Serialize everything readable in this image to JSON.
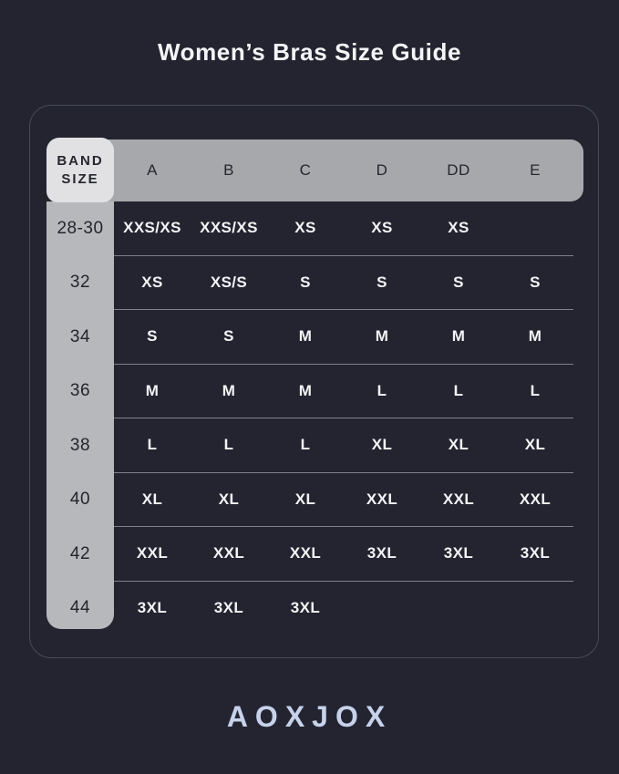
{
  "title": "Women’s Bras Size Guide",
  "brand": {
    "logo_text": "AOXJOX"
  },
  "colors": {
    "background": "#232430",
    "card_border": "#474b56",
    "header_row": "#a7a8ac",
    "band_column": "#b7b8bc",
    "corner_cell": "#e1e1e4",
    "cell_text": "#f4f4f6",
    "dark_text": "#26272d",
    "separator": "#7e818a",
    "logo": "#c7d2ea"
  },
  "table": {
    "corner_lines": [
      "BAND",
      "SIZE"
    ],
    "columns": [
      "A",
      "B",
      "C",
      "D",
      "DD",
      "E"
    ],
    "rows": [
      {
        "band": "28-30",
        "cells": [
          "XXS/XS",
          "XXS/XS",
          "XS",
          "XS",
          "XS",
          ""
        ]
      },
      {
        "band": "32",
        "cells": [
          "XS",
          "XS/S",
          "S",
          "S",
          "S",
          "S"
        ]
      },
      {
        "band": "34",
        "cells": [
          "S",
          "S",
          "M",
          "M",
          "M",
          "M"
        ]
      },
      {
        "band": "36",
        "cells": [
          "M",
          "M",
          "M",
          "L",
          "L",
          "L"
        ]
      },
      {
        "band": "38",
        "cells": [
          "L",
          "L",
          "L",
          "XL",
          "XL",
          "XL"
        ]
      },
      {
        "band": "40",
        "cells": [
          "XL",
          "XL",
          "XL",
          "XXL",
          "XXL",
          "XXL"
        ]
      },
      {
        "band": "42",
        "cells": [
          "XXL",
          "XXL",
          "XXL",
          "3XL",
          "3XL",
          "3XL"
        ]
      },
      {
        "band": "44",
        "cells": [
          "3XL",
          "3XL",
          "3XL",
          "",
          "",
          ""
        ]
      }
    ]
  },
  "chart_data": {
    "type": "table",
    "title": "Women’s Bras Size Guide",
    "corner_header": "BAND SIZE",
    "columns": [
      "A",
      "B",
      "C",
      "D",
      "DD",
      "E"
    ],
    "row_headers": [
      "28-30",
      "32",
      "34",
      "36",
      "38",
      "40",
      "42",
      "44"
    ],
    "cells": [
      [
        "XXS/XS",
        "XXS/XS",
        "XS",
        "XS",
        "XS",
        ""
      ],
      [
        "XS",
        "XS/S",
        "S",
        "S",
        "S",
        "S"
      ],
      [
        "S",
        "S",
        "M",
        "M",
        "M",
        "M"
      ],
      [
        "M",
        "M",
        "M",
        "L",
        "L",
        "L"
      ],
      [
        "L",
        "L",
        "L",
        "XL",
        "XL",
        "XL"
      ],
      [
        "XL",
        "XL",
        "XL",
        "XXL",
        "XXL",
        "XXL"
      ],
      [
        "XXL",
        "XXL",
        "XXL",
        "3XL",
        "3XL",
        "3XL"
      ],
      [
        "3XL",
        "3XL",
        "3XL",
        "",
        "",
        ""
      ]
    ]
  }
}
